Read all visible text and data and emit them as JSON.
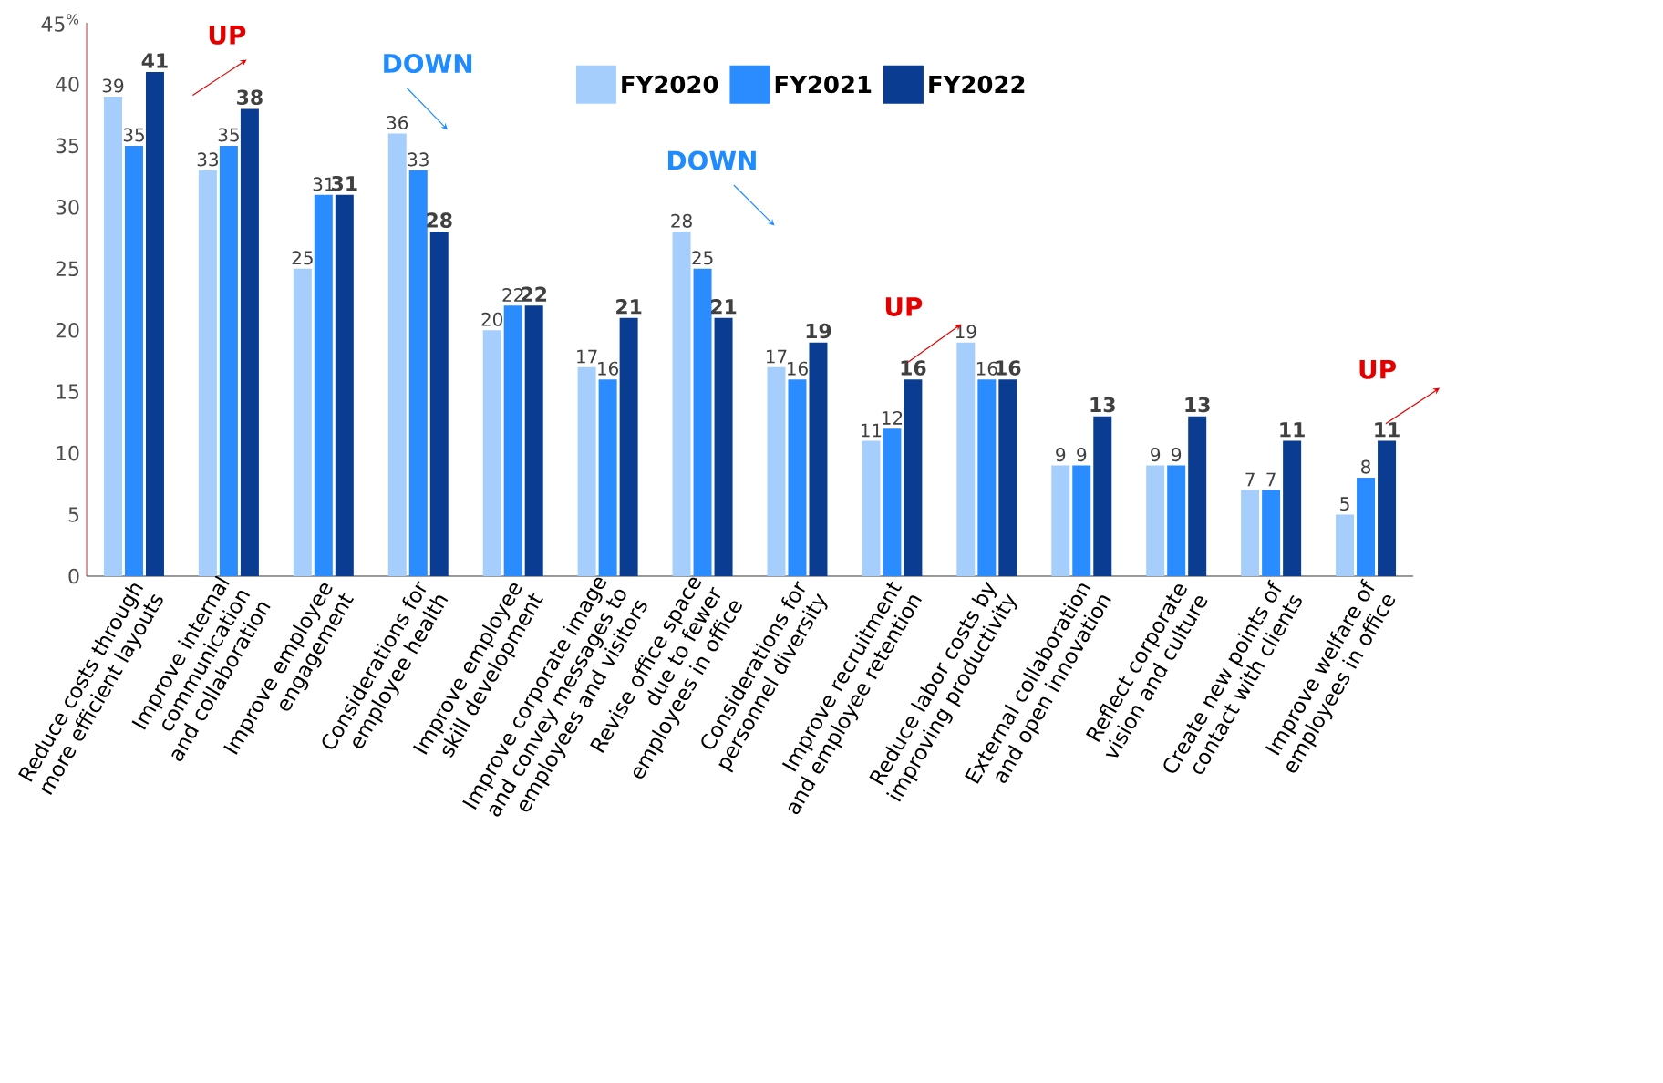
{
  "chart_data": {
    "type": "bar",
    "categories": [
      "Reduce costs through more efficient layouts",
      "Improve internal communication and collaboration",
      "Improve employee engagement",
      "Considerations for employee health",
      "Improve employee skill development",
      "Improve corporate image and convey messages to employees and visitors",
      "Revise office space due to fewer employees in office",
      "Considerations for personnel diversity",
      "Improve recruitment and employee retention",
      "Reduce labor costs by improving productivity",
      "External collaboration and open innovation",
      "Reflect corporate vision and culture",
      "Create new points of contact with clients",
      "Improve welfare of employees in office"
    ],
    "series": [
      {
        "name": "FY2020",
        "color": "#a6cefc",
        "values": [
          39,
          33,
          25,
          36,
          20,
          17,
          28,
          17,
          11,
          19,
          9,
          9,
          7,
          5
        ]
      },
      {
        "name": "FY2021",
        "color": "#2a8cff",
        "values": [
          35,
          35,
          31,
          33,
          22,
          16,
          25,
          16,
          12,
          16,
          9,
          9,
          7,
          8
        ]
      },
      {
        "name": "FY2022",
        "color": "#0a3d91",
        "values": [
          41,
          38,
          31,
          28,
          22,
          21,
          21,
          19,
          16,
          16,
          13,
          13,
          11,
          11
        ]
      }
    ],
    "ylim": [
      0,
      45
    ],
    "yticks": [
      0,
      5,
      10,
      15,
      20,
      25,
      30,
      35,
      40,
      {
        "value": 45,
        "label": "45$^{%}$"
      }
    ],
    "data_labels": true,
    "legend": "top",
    "grid": false,
    "annotations": [
      "UP",
      "DOWN",
      "DOWN",
      "UP",
      "UP"
    ]
  }
}
